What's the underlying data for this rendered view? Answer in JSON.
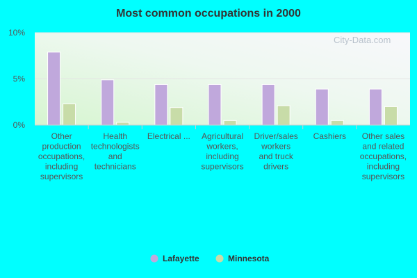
{
  "chart_data": {
    "type": "bar",
    "title": "Most common occupations in 2000",
    "categories": [
      [
        "Other",
        "production",
        "occupations,",
        "including",
        "supervisors"
      ],
      [
        "Health",
        "technologists",
        "and",
        "technicians"
      ],
      [
        "Electrical ..."
      ],
      [
        "Agricultural",
        "workers,",
        "including",
        "supervisors"
      ],
      [
        "Driver/sales",
        "workers",
        "and truck",
        "drivers"
      ],
      [
        "Cashiers"
      ],
      [
        "Other sales",
        "and related",
        "occupations,",
        "including",
        "supervisors"
      ]
    ],
    "series": [
      {
        "name": "Lafayette",
        "color": "#c0a8dc",
        "values": [
          7.9,
          4.9,
          4.4,
          4.4,
          4.4,
          3.9,
          3.9
        ]
      },
      {
        "name": "Minnesota",
        "color": "#c8dca8",
        "values": [
          2.3,
          0.3,
          1.9,
          0.5,
          2.1,
          0.5,
          2.0
        ]
      }
    ],
    "yticks": [
      "0%",
      "5%",
      "10%"
    ],
    "ylim": [
      0,
      10
    ],
    "grid": true,
    "legend_position": "bottom-center"
  },
  "watermark": "City-Data.com"
}
